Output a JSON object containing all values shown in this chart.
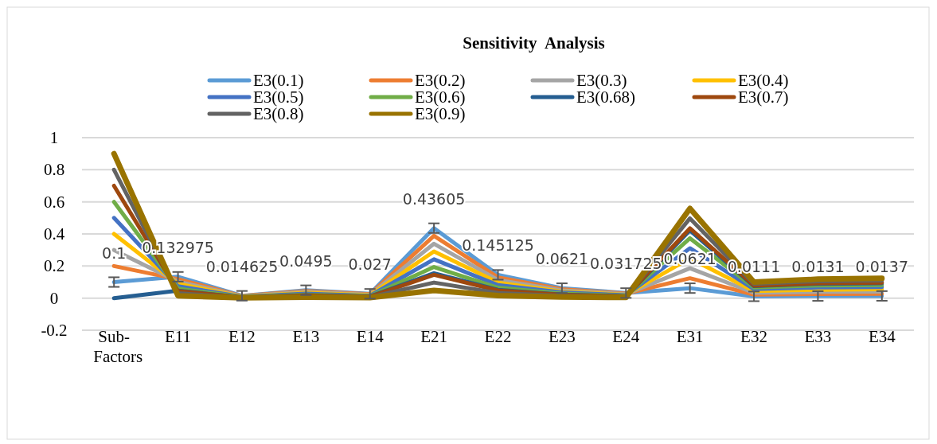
{
  "chart_data": {
    "type": "line",
    "title": "Sensitivity  Analysis",
    "categories": [
      "Sub-Factors",
      "E11",
      "E12",
      "E13",
      "E14",
      "E21",
      "E22",
      "E23",
      "E24",
      "E31",
      "E32",
      "E33",
      "E34"
    ],
    "ylim": [
      -0.2,
      1
    ],
    "yticks": [
      -0.2,
      0,
      0.2,
      0.4,
      0.6,
      0.8,
      1
    ],
    "grid": "y",
    "legend": "top",
    "marker": "none",
    "series": [
      {
        "name": "E3(0.1)",
        "color": "#5b9bd5",
        "values": [
          0.1,
          0.132975,
          0.014625,
          0.0495,
          0.027,
          0.43605,
          0.145125,
          0.0621,
          0.031725,
          0.0621,
          0.0111,
          0.0131,
          0.0137
        ],
        "errors": [
          0.03,
          0.03,
          0.03,
          0.03,
          0.03,
          0.03,
          0.03,
          0.03,
          0.03,
          0.03,
          0.03,
          0.03,
          0.03
        ],
        "value_labels": [
          "0.1",
          "0.132975",
          "0.014625",
          "0.0495",
          "0.027",
          "0.43605",
          "0.145125",
          "0.0621",
          "0.031725",
          "0.0621",
          "0.0111",
          "0.0131",
          "0.0137"
        ]
      },
      {
        "name": "E3(0.2)",
        "color": "#ed7d31",
        "values": [
          0.2,
          0.118,
          0.013,
          0.044,
          0.024,
          0.388,
          0.129,
          0.055,
          0.028,
          0.124,
          0.022,
          0.026,
          0.027
        ]
      },
      {
        "name": "E3(0.3)",
        "color": "#a5a5a5",
        "values": [
          0.3,
          0.103,
          0.011,
          0.039,
          0.021,
          0.339,
          0.113,
          0.048,
          0.025,
          0.186,
          0.033,
          0.039,
          0.041
        ]
      },
      {
        "name": "E3(0.4)",
        "color": "#ffc000",
        "values": [
          0.4,
          0.089,
          0.01,
          0.033,
          0.018,
          0.291,
          0.097,
          0.041,
          0.021,
          0.248,
          0.044,
          0.052,
          0.055
        ]
      },
      {
        "name": "E3(0.5)",
        "color": "#4472c4",
        "values": [
          0.5,
          0.074,
          0.008,
          0.028,
          0.015,
          0.242,
          0.081,
          0.035,
          0.018,
          0.311,
          0.056,
          0.066,
          0.069
        ]
      },
      {
        "name": "E3(0.6)",
        "color": "#70ad47",
        "values": [
          0.6,
          0.059,
          0.007,
          0.022,
          0.012,
          0.194,
          0.065,
          0.028,
          0.014,
          0.373,
          0.067,
          0.079,
          0.082
        ]
      },
      {
        "name": "E3(0.68)",
        "color": "#255e91",
        "values": [
          0,
          0.047,
          0.005,
          0.018,
          0.01,
          0.155,
          0.052,
          0.022,
          0.011,
          0.422,
          0.075,
          0.089,
          0.093
        ]
      },
      {
        "name": "E3(0.7)",
        "color": "#9e480e",
        "values": [
          0.7,
          0.044,
          0.005,
          0.017,
          0.009,
          0.145,
          0.048,
          0.021,
          0.011,
          0.435,
          0.078,
          0.092,
          0.096
        ]
      },
      {
        "name": "E3(0.8)",
        "color": "#636363",
        "values": [
          0.8,
          0.03,
          0.003,
          0.011,
          0.006,
          0.097,
          0.032,
          0.014,
          0.007,
          0.497,
          0.089,
          0.105,
          0.11
        ]
      },
      {
        "name": "E3(0.9)",
        "color": "#997300",
        "values": [
          0.9,
          0.015,
          0.002,
          0.006,
          0.003,
          0.048,
          0.016,
          0.007,
          0.004,
          0.559,
          0.1,
          0.118,
          0.123
        ]
      }
    ]
  }
}
